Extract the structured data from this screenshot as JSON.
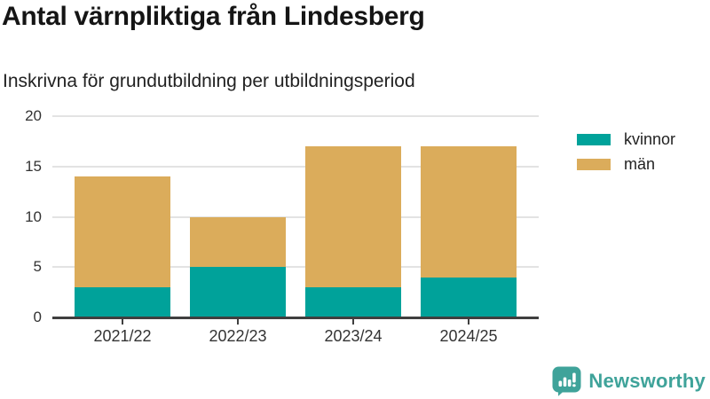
{
  "chart_data": {
    "type": "bar",
    "stacked": true,
    "title": "Antal värnpliktiga från Lindesberg",
    "subtitle": "Inskrivna för grundutbildning per utbildningsperiod",
    "categories": [
      "2021/22",
      "2022/23",
      "2023/24",
      "2024/25"
    ],
    "series": [
      {
        "name": "kvinnor",
        "color": "#00A29A",
        "values": [
          3,
          5,
          3,
          4
        ]
      },
      {
        "name": "män",
        "color": "#DBAC5B",
        "values": [
          11,
          5,
          14,
          13
        ]
      }
    ],
    "totals": [
      14,
      10,
      17,
      17
    ],
    "xlabel": "",
    "ylabel": "",
    "ylim": [
      0,
      20
    ],
    "yticks": [
      0,
      5,
      10,
      15,
      20
    ],
    "grid": true,
    "legend_position": "right-top",
    "colors": {
      "grid": "#e3e3e3",
      "axis_line": "#3f3f3f",
      "axis_text": "#333333",
      "title_text": "#151515"
    }
  },
  "footer": {
    "brand": "Newsworthy",
    "brand_color": "#3FA39A"
  }
}
